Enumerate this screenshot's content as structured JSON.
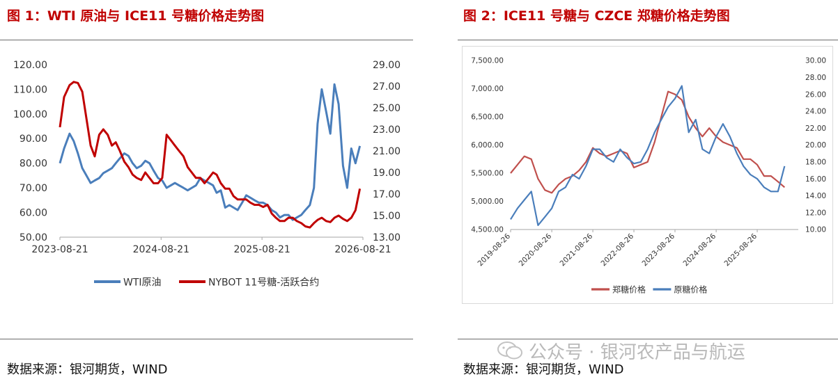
{
  "panels": [
    {
      "title": "图 1：WTI 原油与 ICE11 号糖价格走势图",
      "source": "数据来源：银河期货，WIND"
    },
    {
      "title": "图 2：ICE11 号糖与 CZCE 郑糖价格走势图",
      "source": "数据来源：银河期货，WIND"
    }
  ],
  "watermark": "公众号 · 银河农产品与航运",
  "chart_data": [
    {
      "type": "line",
      "x_ticks": [
        "2023-08-21",
        "2024-08-21",
        "2025-08-21",
        "2026-08-21"
      ],
      "x_range": [
        "2023-08-21",
        "2026-08-21"
      ],
      "y_left": {
        "ticks": [
          "50.00",
          "60.00",
          "70.00",
          "80.00",
          "90.00",
          "100.00",
          "110.00",
          "120.00"
        ],
        "range": [
          50,
          120
        ]
      },
      "y_right": {
        "ticks": [
          "13.00",
          "15.00",
          "17.00",
          "19.00",
          "21.00",
          "23.00",
          "25.00",
          "27.00",
          "29.00"
        ],
        "range": [
          13,
          29
        ]
      },
      "legend_position": "bottom",
      "grid": false,
      "series": [
        {
          "name": "WTI原油",
          "axis": "left",
          "color": "#4a7ebb",
          "x": [
            "2023-08-21",
            "2023-09-05",
            "2023-09-25",
            "2023-10-10",
            "2023-10-25",
            "2023-11-10",
            "2023-11-25",
            "2023-12-10",
            "2023-12-25",
            "2024-01-10",
            "2024-01-25",
            "2024-02-10",
            "2024-02-25",
            "2024-03-10",
            "2024-03-25",
            "2024-04-10",
            "2024-04-25",
            "2024-05-10",
            "2024-05-25",
            "2024-06-10",
            "2024-06-25",
            "2024-07-10",
            "2024-07-25",
            "2024-08-10",
            "2024-08-25",
            "2024-09-10",
            "2024-09-25",
            "2024-10-10",
            "2024-10-25",
            "2024-11-10",
            "2024-11-25",
            "2024-12-10",
            "2024-12-25",
            "2025-01-10",
            "2025-01-25",
            "2025-02-10",
            "2025-02-25",
            "2025-03-10",
            "2025-03-25",
            "2025-04-10",
            "2025-04-25",
            "2025-05-10",
            "2025-05-25",
            "2025-06-10",
            "2025-06-25",
            "2025-07-10",
            "2025-07-25",
            "2025-08-10",
            "2025-08-25",
            "2025-09-10",
            "2025-09-25",
            "2025-10-10",
            "2025-10-25",
            "2025-11-10",
            "2025-11-25",
            "2025-12-10",
            "2025-12-25",
            "2026-01-10",
            "2026-01-25",
            "2026-02-10",
            "2026-02-25",
            "2026-03-10",
            "2026-03-25",
            "2026-04-10",
            "2026-04-25",
            "2026-05-10",
            "2026-05-25",
            "2026-06-10",
            "2026-06-25",
            "2026-07-10",
            "2026-07-25",
            "2026-08-10"
          ],
          "values": [
            80,
            86,
            92,
            89,
            84,
            78,
            75,
            72,
            73,
            74,
            76,
            77,
            78,
            80,
            82,
            84,
            83,
            80,
            78,
            79,
            81,
            80,
            77,
            74,
            73,
            70,
            71,
            72,
            71,
            70,
            69,
            70,
            71,
            74,
            73,
            72,
            71,
            68,
            69,
            62,
            63,
            62,
            61,
            64,
            67,
            66,
            65,
            64,
            64,
            63,
            61,
            60,
            58,
            59,
            59,
            57,
            58,
            59,
            61,
            63,
            70,
            96,
            110,
            101,
            92,
            112,
            104,
            79,
            70,
            86,
            80,
            87
          ]
        },
        {
          "name": "NYBOT 11号糖-活跃合约",
          "axis": "right",
          "color": "#c00000",
          "x": [
            "2023-08-21",
            "2023-09-05",
            "2023-09-25",
            "2023-10-10",
            "2023-10-25",
            "2023-11-10",
            "2023-11-25",
            "2023-12-10",
            "2023-12-25",
            "2024-01-10",
            "2024-01-25",
            "2024-02-10",
            "2024-02-25",
            "2024-03-10",
            "2024-03-25",
            "2024-04-10",
            "2024-04-25",
            "2024-05-10",
            "2024-05-25",
            "2024-06-10",
            "2024-06-25",
            "2024-07-10",
            "2024-07-25",
            "2024-08-10",
            "2024-08-25",
            "2024-09-10",
            "2024-09-25",
            "2024-10-10",
            "2024-10-25",
            "2024-11-10",
            "2024-11-25",
            "2024-12-10",
            "2024-12-25",
            "2025-01-10",
            "2025-01-25",
            "2025-02-10",
            "2025-02-25",
            "2025-03-10",
            "2025-03-25",
            "2025-04-10",
            "2025-04-25",
            "2025-05-10",
            "2025-05-25",
            "2025-06-10",
            "2025-06-25",
            "2025-07-10",
            "2025-07-25",
            "2025-08-10",
            "2025-08-25",
            "2025-09-10",
            "2025-09-25",
            "2025-10-10",
            "2025-10-25",
            "2025-11-10",
            "2025-11-25",
            "2025-12-10",
            "2025-12-25",
            "2026-01-10",
            "2026-01-25",
            "2026-02-10",
            "2026-02-25",
            "2026-03-10",
            "2026-03-25",
            "2026-04-10",
            "2026-04-25",
            "2026-05-10",
            "2026-05-25",
            "2026-06-10",
            "2026-06-25",
            "2026-07-10",
            "2026-07-25",
            "2026-08-10"
          ],
          "values": [
            23.2,
            26.0,
            27.1,
            27.4,
            27.3,
            26.5,
            24.0,
            21.5,
            20.5,
            22.5,
            23.0,
            22.5,
            21.5,
            21.8,
            21.0,
            20.0,
            19.5,
            18.8,
            18.5,
            18.3,
            19.0,
            18.5,
            18.0,
            18.0,
            18.5,
            22.5,
            22.0,
            21.5,
            21.0,
            20.5,
            19.5,
            19.0,
            18.5,
            18.5,
            18.0,
            18.5,
            19.0,
            18.8,
            18.0,
            17.5,
            17.5,
            16.8,
            16.5,
            16.5,
            16.5,
            16.2,
            16.0,
            16.0,
            15.8,
            16.0,
            15.2,
            14.8,
            14.5,
            14.5,
            14.8,
            14.8,
            14.5,
            14.3,
            14.0,
            13.9,
            14.3,
            14.6,
            14.8,
            14.5,
            14.4,
            14.8,
            15.0,
            14.7,
            14.5,
            14.8,
            15.5,
            17.5
          ]
        }
      ]
    },
    {
      "type": "line",
      "x_ticks": [
        "2019-08-26",
        "2020-08-26",
        "2021-08-26",
        "2022-08-26",
        "2023-08-26",
        "2024-08-26",
        "2025-08-26"
      ],
      "x_range": [
        "2019-08-26",
        "2026-08-26"
      ],
      "y_left": {
        "ticks": [
          "4,500.00",
          "5,000.00",
          "5,500.00",
          "6,000.00",
          "6,500.00",
          "7,000.00",
          "7,500.00"
        ],
        "range": [
          4500,
          7500
        ]
      },
      "y_right": {
        "ticks": [
          "10.00",
          "12.00",
          "14.00",
          "16.00",
          "18.00",
          "20.00",
          "22.00",
          "24.00",
          "26.00",
          "28.00",
          "30.00"
        ],
        "range": [
          10,
          30
        ]
      },
      "legend_position": "bottom",
      "grid": false,
      "series": [
        {
          "name": "郑糖价格",
          "axis": "left",
          "color": "#c0504d",
          "x": [
            "2019-08-26",
            "2019-10-26",
            "2019-12-26",
            "2020-02-26",
            "2020-04-26",
            "2020-06-26",
            "2020-08-26",
            "2020-10-26",
            "2020-12-26",
            "2021-02-26",
            "2021-04-26",
            "2021-06-26",
            "2021-08-26",
            "2021-10-26",
            "2021-12-26",
            "2022-02-26",
            "2022-04-26",
            "2022-06-26",
            "2022-08-26",
            "2022-10-26",
            "2022-12-26",
            "2023-02-26",
            "2023-04-26",
            "2023-06-26",
            "2023-08-26",
            "2023-10-26",
            "2023-12-26",
            "2024-02-26",
            "2024-04-26",
            "2024-06-26",
            "2024-08-26",
            "2024-10-26",
            "2024-12-26",
            "2025-02-26",
            "2025-04-26",
            "2025-06-26",
            "2025-08-26",
            "2025-10-26",
            "2025-12-26",
            "2026-02-26",
            "2026-04-26"
          ],
          "values": [
            5500,
            5650,
            5800,
            5750,
            5400,
            5200,
            5150,
            5300,
            5400,
            5450,
            5550,
            5700,
            5950,
            5850,
            5800,
            5850,
            5900,
            5850,
            5600,
            5650,
            5700,
            6050,
            6500,
            6950,
            6900,
            6800,
            6500,
            6300,
            6150,
            6300,
            6150,
            6050,
            6000,
            5950,
            5750,
            5750,
            5650,
            5450,
            5450,
            5350,
            5250
          ]
        },
        {
          "name": "原糖价格",
          "axis": "right",
          "color": "#4a7ebb",
          "x": [
            "2019-08-26",
            "2019-10-26",
            "2019-12-26",
            "2020-02-26",
            "2020-04-26",
            "2020-06-26",
            "2020-08-26",
            "2020-10-26",
            "2020-12-26",
            "2021-02-26",
            "2021-04-26",
            "2021-06-26",
            "2021-08-26",
            "2021-10-26",
            "2021-12-26",
            "2022-02-26",
            "2022-04-26",
            "2022-06-26",
            "2022-08-26",
            "2022-10-26",
            "2022-12-26",
            "2023-02-26",
            "2023-04-26",
            "2023-06-26",
            "2023-08-26",
            "2023-10-26",
            "2023-12-26",
            "2024-02-26",
            "2024-04-26",
            "2024-06-26",
            "2024-08-26",
            "2024-10-26",
            "2024-12-26",
            "2025-02-26",
            "2025-04-26",
            "2025-06-26",
            "2025-08-26",
            "2025-10-26",
            "2025-12-26",
            "2026-02-26",
            "2026-04-26"
          ],
          "values": [
            11.2,
            12.5,
            13.5,
            14.5,
            10.5,
            11.5,
            12.5,
            14.5,
            15.0,
            16.5,
            16.0,
            17.5,
            19.5,
            19.5,
            18.5,
            18.0,
            19.5,
            18.5,
            17.8,
            18.0,
            19.5,
            21.5,
            23.0,
            24.5,
            25.5,
            27.0,
            21.5,
            23.0,
            19.5,
            19.0,
            21.0,
            22.5,
            21.0,
            19.0,
            17.5,
            16.5,
            16.0,
            15.0,
            14.5,
            14.5,
            17.5
          ]
        }
      ]
    }
  ]
}
